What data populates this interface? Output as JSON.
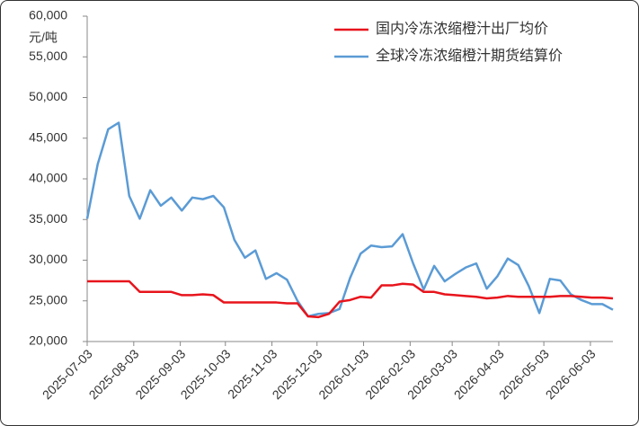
{
  "chart_data": {
    "type": "line",
    "y_label": "元/吨",
    "x": [
      "2025-07-03",
      "2025-07-10",
      "2025-07-17",
      "2025-07-24",
      "2025-07-31",
      "2025-08-07",
      "2025-08-14",
      "2025-08-21",
      "2025-08-28",
      "2025-09-04",
      "2025-09-11",
      "2025-09-18",
      "2025-09-25",
      "2025-10-02",
      "2025-10-09",
      "2025-10-16",
      "2025-10-23",
      "2025-10-30",
      "2025-11-06",
      "2025-11-13",
      "2025-11-20",
      "2025-11-27",
      "2025-12-04",
      "2025-12-11",
      "2025-12-18",
      "2025-12-25",
      "2026-01-01",
      "2026-01-08",
      "2026-01-15",
      "2026-01-22",
      "2026-01-29",
      "2026-02-05",
      "2026-02-12",
      "2026-02-19",
      "2026-02-26",
      "2026-03-05",
      "2026-03-12",
      "2026-03-19",
      "2026-03-26",
      "2026-04-02",
      "2026-04-09",
      "2026-04-16",
      "2026-04-23",
      "2026-04-30",
      "2026-05-07",
      "2026-05-14",
      "2026-05-21",
      "2026-05-28",
      "2026-06-04",
      "2026-06-11",
      "2026-06-18"
    ],
    "series": [
      {
        "name": "国内冷冻浓缩橙汁出厂均价",
        "color": "#e8141c",
        "values": [
          27400,
          27400,
          27400,
          27400,
          27400,
          26100,
          26100,
          26100,
          26100,
          25700,
          25700,
          25800,
          25700,
          24800,
          24800,
          24800,
          24800,
          24800,
          24800,
          24700,
          24700,
          23100,
          23000,
          23400,
          24900,
          25100,
          25500,
          25400,
          26900,
          26900,
          27100,
          27000,
          26100,
          26100,
          25800,
          25700,
          25600,
          25500,
          25300,
          25400,
          25600,
          25500,
          25500,
          25500,
          25500,
          25600,
          25600,
          25500,
          25400,
          25400,
          25300
        ]
      },
      {
        "name": "全球冷冻浓缩橙汁期货结算价",
        "color": "#5b9bd5",
        "values": [
          35100,
          41800,
          46100,
          46900,
          37900,
          35100,
          38600,
          36700,
          37700,
          36100,
          37700,
          37500,
          37900,
          36500,
          32500,
          30300,
          31200,
          27700,
          28400,
          27600,
          25000,
          23100,
          23400,
          23500,
          24000,
          27800,
          30800,
          31800,
          31600,
          31700,
          33200,
          29600,
          26400,
          29300,
          27400,
          28300,
          29100,
          29600,
          26500,
          28000,
          30200,
          29400,
          26800,
          23500,
          27700,
          27500,
          25800,
          25100,
          24600,
          24600,
          23900
        ]
      }
    ],
    "xlim": [
      "2025-07-03",
      "2026-06-18"
    ],
    "xticks": [
      "2025-07-03",
      "2025-08-03",
      "2025-09-03",
      "2025-10-03",
      "2025-11-03",
      "2025-12-03",
      "2026-01-03",
      "2026-02-03",
      "2026-03-03",
      "2026-04-03",
      "2026-05-03",
      "2026-06-03"
    ],
    "ylim": [
      20000,
      60000
    ],
    "yticks": [
      {
        "value": 20000,
        "label": "20,000"
      },
      {
        "value": 25000,
        "label": "25,000"
      },
      {
        "value": 30000,
        "label": "30,000"
      },
      {
        "value": 35000,
        "label": "35,000"
      },
      {
        "value": 40000,
        "label": "40,000"
      },
      {
        "value": 45000,
        "label": "45,000"
      },
      {
        "value": 50000,
        "label": "50,000"
      },
      {
        "value": 55000,
        "label": "55,000"
      },
      {
        "value": 60000,
        "label": "60,000"
      }
    ],
    "grid": false,
    "legend": "top-right"
  }
}
